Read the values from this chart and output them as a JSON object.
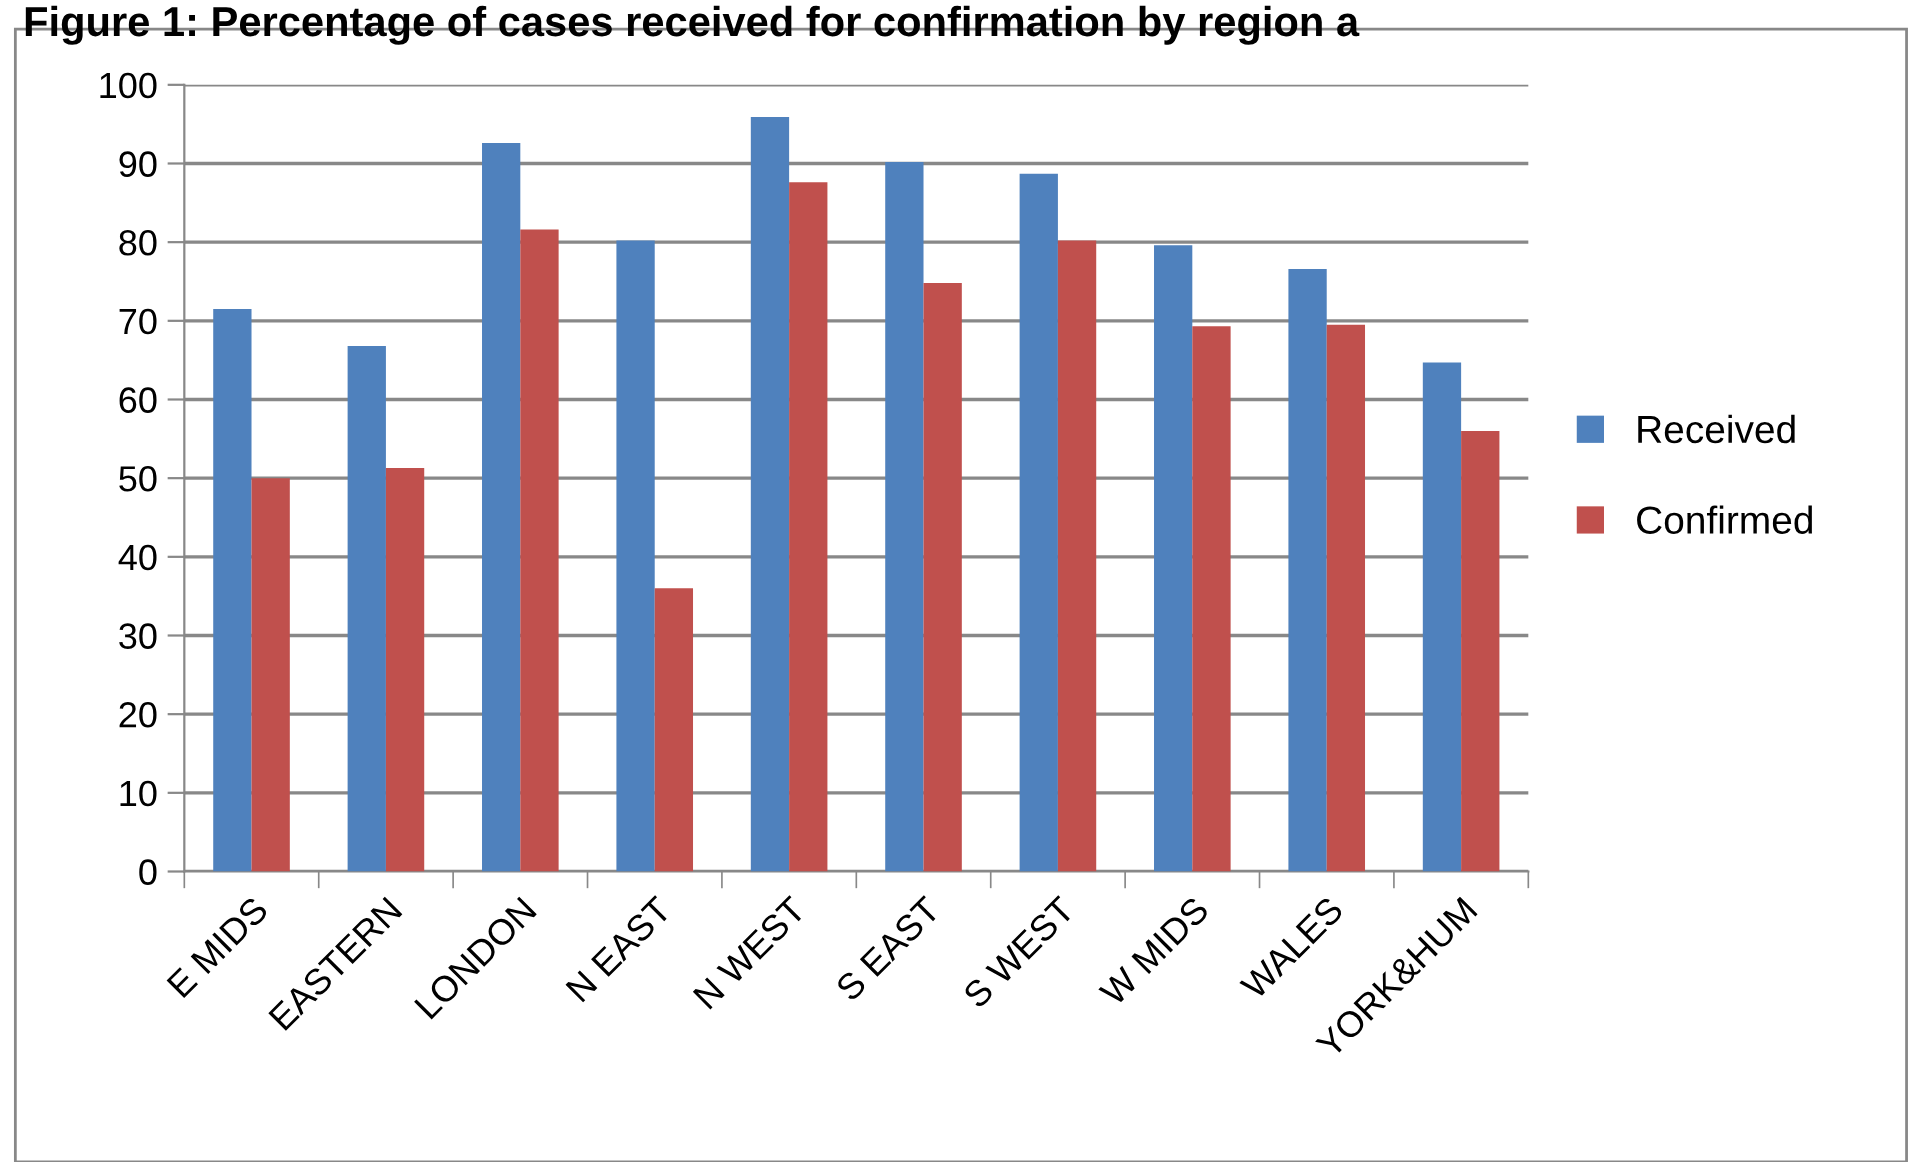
{
  "chart_data": {
    "type": "bar",
    "title": "Figure 1: Percentage of cases received for confirmation by region a",
    "categories": [
      "E MIDS",
      "EASTERN",
      "LONDON",
      "N EAST",
      "N WEST",
      "S EAST",
      "S WEST",
      "W MIDS",
      "WALES",
      "YORK&HUM"
    ],
    "series": [
      {
        "name": "Received",
        "color": "#4f81bd",
        "values": [
          71.5,
          66.8,
          92.6,
          80.2,
          95.9,
          90.2,
          88.7,
          79.6,
          76.6,
          64.7
        ]
      },
      {
        "name": "Confirmed",
        "color": "#c0504d",
        "values": [
          50.0,
          51.3,
          81.6,
          36.0,
          87.6,
          74.8,
          80.2,
          69.3,
          69.5,
          56.0
        ]
      }
    ],
    "ylim": [
      0,
      100
    ],
    "yticks": [
      0,
      10,
      20,
      30,
      40,
      50,
      60,
      70,
      80,
      90,
      100
    ],
    "grid": "y",
    "legend": "right"
  }
}
